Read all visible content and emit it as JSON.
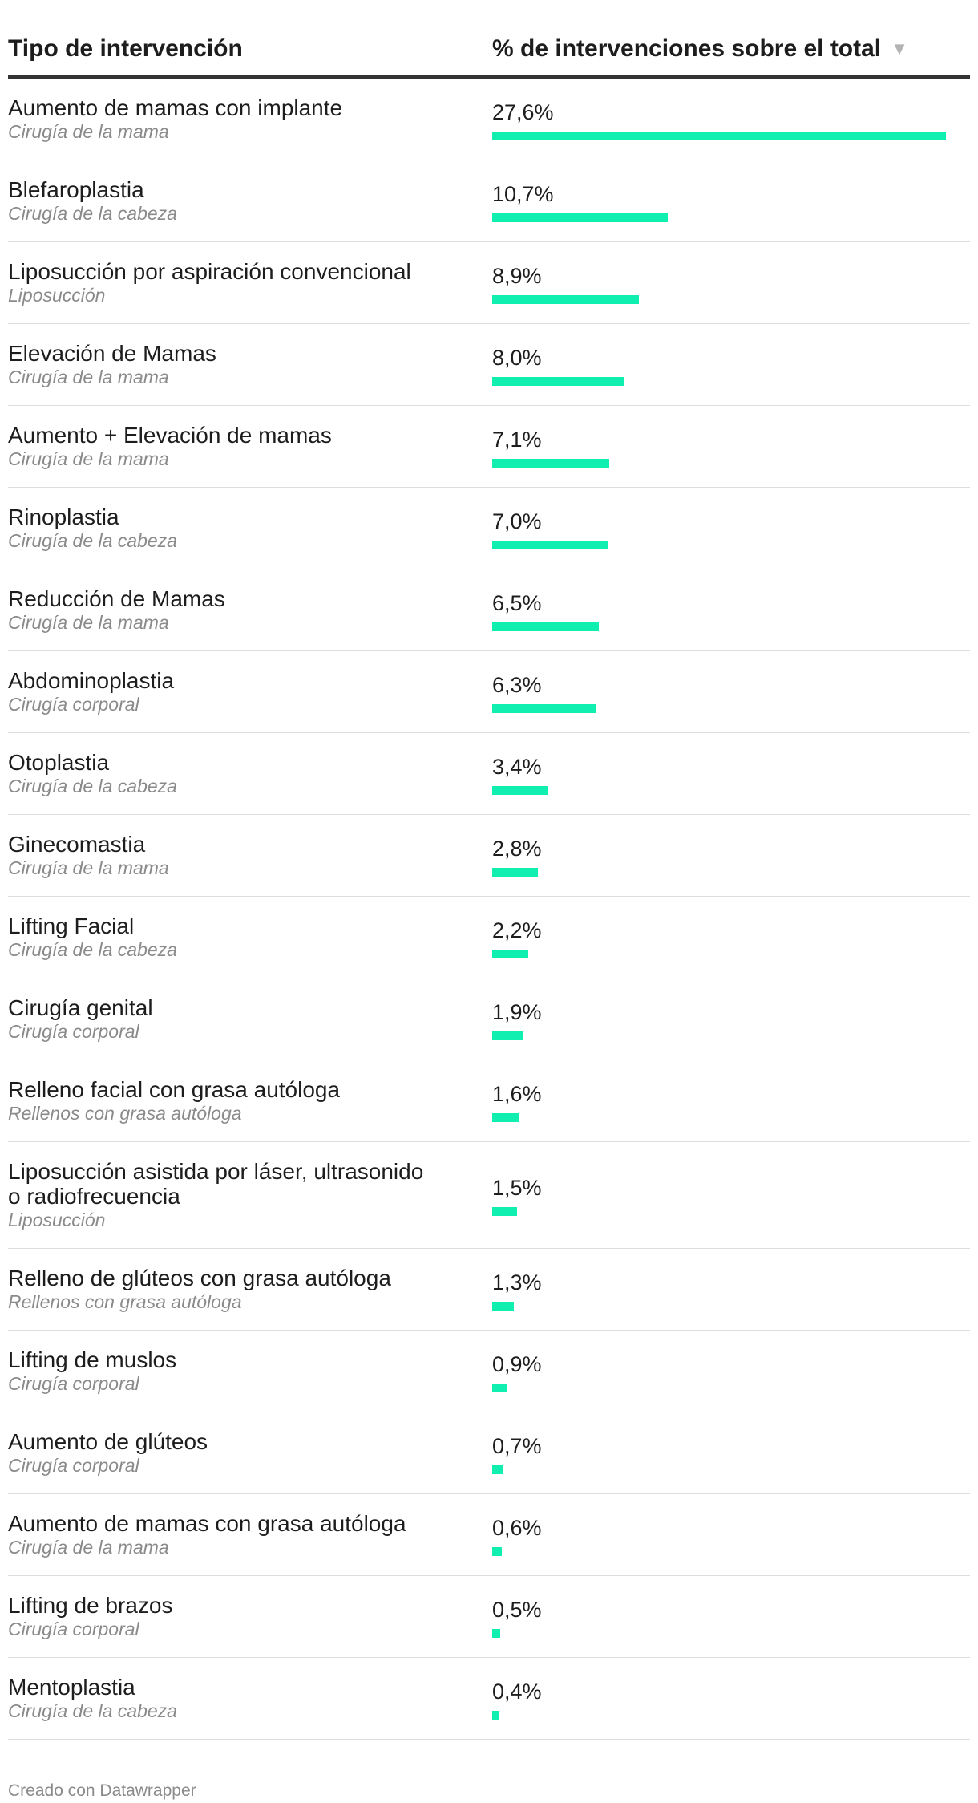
{
  "header": {
    "col1": "Tipo de intervención",
    "col2": "% de intervenciones sobre el total",
    "sort_icon": "sort-descending-icon"
  },
  "colors": {
    "bar": "#10efb0",
    "subtitle": "#8a8a8a",
    "divider": "#333333"
  },
  "chart_data": {
    "type": "table",
    "columns": [
      "Tipo de intervención",
      "% de intervenciones sobre el total"
    ],
    "max": 27.6,
    "rows": [
      {
        "name": "Aumento de mamas con implante",
        "category": "Cirugía de la mama",
        "value": 27.6,
        "label": "27,6%"
      },
      {
        "name": "Blefaroplastia",
        "category": "Cirugía de la cabeza",
        "value": 10.7,
        "label": "10,7%"
      },
      {
        "name": "Liposucción por aspiración convencional",
        "category": "Liposucción",
        "value": 8.9,
        "label": "8,9%"
      },
      {
        "name": "Elevación de Mamas",
        "category": "Cirugía de la mama",
        "value": 8.0,
        "label": "8,0%"
      },
      {
        "name": "Aumento + Elevación de mamas",
        "category": "Cirugía de la mama",
        "value": 7.1,
        "label": "7,1%"
      },
      {
        "name": "Rinoplastia",
        "category": "Cirugía de la cabeza",
        "value": 7.0,
        "label": "7,0%"
      },
      {
        "name": "Reducción de Mamas",
        "category": "Cirugía de la mama",
        "value": 6.5,
        "label": "6,5%"
      },
      {
        "name": "Abdominoplastia",
        "category": "Cirugía corporal",
        "value": 6.3,
        "label": "6,3%"
      },
      {
        "name": "Otoplastia",
        "category": "Cirugía de la cabeza",
        "value": 3.4,
        "label": "3,4%"
      },
      {
        "name": "Ginecomastia",
        "category": "Cirugía de la mama",
        "value": 2.8,
        "label": "2,8%"
      },
      {
        "name": "Lifting Facial",
        "category": "Cirugía de la cabeza",
        "value": 2.2,
        "label": "2,2%"
      },
      {
        "name": "Cirugía genital",
        "category": "Cirugía corporal",
        "value": 1.9,
        "label": "1,9%"
      },
      {
        "name": "Relleno facial con grasa autóloga",
        "category": "Rellenos con grasa autóloga",
        "value": 1.6,
        "label": "1,6%"
      },
      {
        "name": "Liposucción asistida por láser, ultrasonido o radiofrecuencia",
        "category": "Liposucción",
        "value": 1.5,
        "label": "1,5%"
      },
      {
        "name": "Relleno de glúteos con grasa autóloga",
        "category": "Rellenos con grasa autóloga",
        "value": 1.3,
        "label": "1,3%"
      },
      {
        "name": "Lifting de muslos",
        "category": "Cirugía corporal",
        "value": 0.9,
        "label": "0,9%"
      },
      {
        "name": "Aumento de glúteos",
        "category": "Cirugía corporal",
        "value": 0.7,
        "label": "0,7%"
      },
      {
        "name": "Aumento de mamas con grasa autóloga",
        "category": "Cirugía de la mama",
        "value": 0.6,
        "label": "0,6%"
      },
      {
        "name": "Lifting de brazos",
        "category": "Cirugía corporal",
        "value": 0.5,
        "label": "0,5%"
      },
      {
        "name": "Mentoplastia",
        "category": "Cirugía de la cabeza",
        "value": 0.4,
        "label": "0,4%"
      }
    ]
  },
  "footer": {
    "credit": "Creado con Datawrapper"
  }
}
